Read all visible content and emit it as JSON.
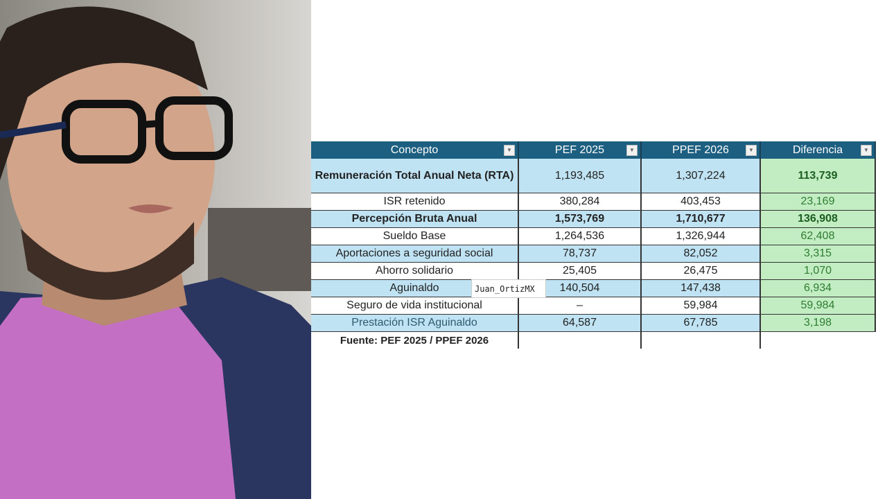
{
  "table": {
    "headers": [
      "Concepto",
      "PEF 2025",
      "PPEF 2026",
      "Diferencia"
    ],
    "rows": [
      {
        "concepto": "Remuneración Total Anual Neta (RTA)",
        "pef2025": "1,193,485",
        "ppef2026": "1,307,224",
        "diferencia": "113,739"
      },
      {
        "concepto": "ISR retenido",
        "pef2025": "380,284",
        "ppef2026": "403,453",
        "diferencia": "23,169"
      },
      {
        "concepto": "Percepción Bruta Anual",
        "pef2025": "1,573,769",
        "ppef2026": "1,710,677",
        "diferencia": "136,908"
      },
      {
        "concepto": "Sueldo Base",
        "pef2025": "1,264,536",
        "ppef2026": "1,326,944",
        "diferencia": "62,408"
      },
      {
        "concepto": "Aportaciones a seguridad social",
        "pef2025": "78,737",
        "ppef2026": "82,052",
        "diferencia": "3,315"
      },
      {
        "concepto": "Ahorro solidario",
        "pef2025": "25,405",
        "ppef2026": "26,475",
        "diferencia": "1,070"
      },
      {
        "concepto": "Aguinaldo",
        "pef2025": "140,504",
        "ppef2026": "147,438",
        "diferencia": "6,934"
      },
      {
        "concepto": "Seguro de vida institucional",
        "pef2025": "–",
        "ppef2026": "59,984",
        "diferencia": "59,984"
      },
      {
        "concepto": "Prestación ISR Aguinaldo",
        "pef2025": "64,587",
        "ppef2026": "67,785",
        "diferencia": "3,198"
      }
    ],
    "source": "Fuente: PEF 2025 / PPEF 2026",
    "filter_icon": "dropdown-arrow-icon"
  },
  "watermark": "Juan_OrtizMX",
  "colors": {
    "header": "#1d5f80",
    "row_blue": "#bfe3f3",
    "diff_green": "#c2ecc2",
    "diff_text": "#2e7d32"
  }
}
